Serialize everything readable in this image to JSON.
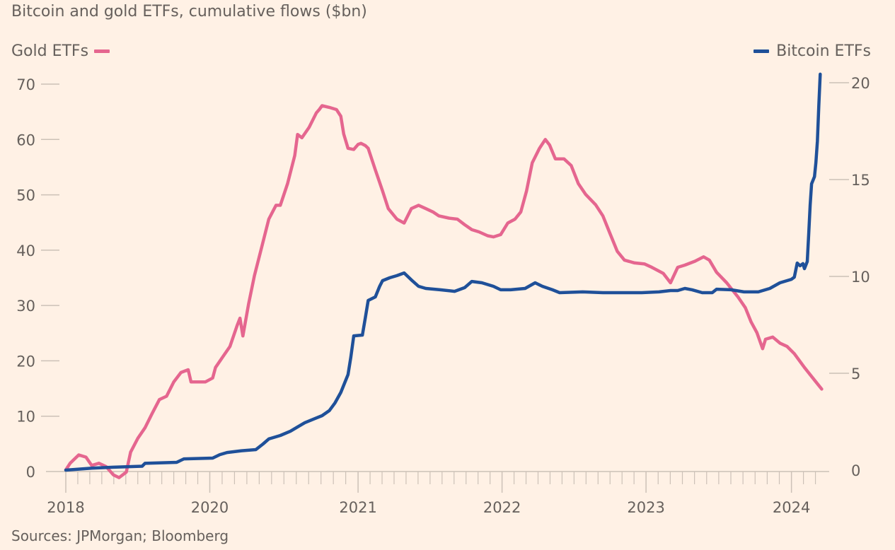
{
  "chart_data": {
    "type": "line",
    "title": "Bitcoin and gold ETFs, cumulative flows ($bn)",
    "source": "Sources: JPMorgan; Bloomberg",
    "x_ticks": [
      {
        "label": "2018",
        "pos": 0
      },
      {
        "label": "2020",
        "pos": 1
      },
      {
        "label": "2021",
        "pos": 2.03
      },
      {
        "label": "2022",
        "pos": 3.03
      },
      {
        "label": "2023",
        "pos": 4.03
      },
      {
        "label": "2024",
        "pos": 5.04
      }
    ],
    "x_minor_ticks_per_major": 5,
    "x_range": [
      0,
      5.25
    ],
    "y_left": {
      "label": "Gold ETFs",
      "ticks": [
        0,
        10,
        20,
        30,
        40,
        50,
        60,
        70
      ],
      "range": [
        0,
        70
      ]
    },
    "y_right": {
      "label": "Bitcoin ETFs",
      "ticks": [
        0,
        5,
        10,
        15,
        20
      ],
      "range": [
        0,
        20
      ]
    },
    "grid": false,
    "legend": {
      "left": "top-left",
      "right": "top-right"
    },
    "series": [
      {
        "name": "Gold ETFs",
        "axis": "left",
        "color": "#e5668f",
        "points": [
          [
            0,
            0.3
          ],
          [
            0.03,
            1.5
          ],
          [
            0.09,
            3.0
          ],
          [
            0.14,
            2.6
          ],
          [
            0.18,
            1.1
          ],
          [
            0.23,
            1.5
          ],
          [
            0.28,
            0.9
          ],
          [
            0.33,
            -0.6
          ],
          [
            0.37,
            -1.1
          ],
          [
            0.42,
            -0.1
          ],
          [
            0.45,
            3.5
          ],
          [
            0.5,
            6.0
          ],
          [
            0.55,
            7.9
          ],
          [
            0.6,
            10.5
          ],
          [
            0.65,
            13.0
          ],
          [
            0.7,
            13.6
          ],
          [
            0.75,
            16.2
          ],
          [
            0.8,
            17.9
          ],
          [
            0.85,
            18.4
          ],
          [
            0.87,
            16.2
          ],
          [
            0.92,
            16.2
          ],
          [
            0.97,
            16.2
          ],
          [
            1.02,
            16.9
          ],
          [
            1.04,
            18.8
          ],
          [
            1.09,
            20.7
          ],
          [
            1.14,
            22.6
          ],
          [
            1.19,
            26.4
          ],
          [
            1.21,
            27.7
          ],
          [
            1.23,
            24.5
          ],
          [
            1.27,
            30.3
          ],
          [
            1.31,
            35.4
          ],
          [
            1.36,
            40.5
          ],
          [
            1.41,
            45.6
          ],
          [
            1.46,
            48.1
          ],
          [
            1.49,
            48.1
          ],
          [
            1.54,
            52.0
          ],
          [
            1.59,
            57.1
          ],
          [
            1.61,
            60.9
          ],
          [
            1.64,
            60.3
          ],
          [
            1.69,
            62.2
          ],
          [
            1.74,
            64.8
          ],
          [
            1.76,
            65.4
          ],
          [
            1.78,
            66.1
          ],
          [
            1.83,
            65.8
          ],
          [
            1.88,
            65.4
          ],
          [
            1.91,
            64.2
          ],
          [
            1.93,
            61.0
          ],
          [
            1.96,
            58.4
          ],
          [
            2.0,
            58.2
          ],
          [
            2.03,
            59.1
          ],
          [
            2.05,
            59.3
          ],
          [
            2.08,
            58.9
          ],
          [
            2.1,
            58.4
          ],
          [
            2.15,
            54.5
          ],
          [
            2.2,
            50.7
          ],
          [
            2.24,
            47.5
          ],
          [
            2.3,
            45.6
          ],
          [
            2.35,
            44.9
          ],
          [
            2.4,
            47.5
          ],
          [
            2.45,
            48.1
          ],
          [
            2.5,
            47.5
          ],
          [
            2.55,
            46.9
          ],
          [
            2.59,
            46.2
          ],
          [
            2.66,
            45.8
          ],
          [
            2.72,
            45.6
          ],
          [
            2.77,
            44.6
          ],
          [
            2.82,
            43.7
          ],
          [
            2.87,
            43.3
          ],
          [
            2.93,
            42.6
          ],
          [
            2.97,
            42.4
          ],
          [
            3.02,
            42.8
          ],
          [
            3.07,
            44.9
          ],
          [
            3.12,
            45.6
          ],
          [
            3.16,
            46.9
          ],
          [
            3.2,
            50.7
          ],
          [
            3.24,
            55.8
          ],
          [
            3.29,
            58.4
          ],
          [
            3.33,
            60.0
          ],
          [
            3.36,
            59.0
          ],
          [
            3.4,
            56.5
          ],
          [
            3.46,
            56.5
          ],
          [
            3.51,
            55.3
          ],
          [
            3.56,
            52.0
          ],
          [
            3.61,
            50.1
          ],
          [
            3.68,
            48.2
          ],
          [
            3.73,
            46.2
          ],
          [
            3.78,
            43.0
          ],
          [
            3.83,
            39.8
          ],
          [
            3.88,
            38.2
          ],
          [
            3.95,
            37.7
          ],
          [
            4.02,
            37.5
          ],
          [
            4.07,
            36.9
          ],
          [
            4.15,
            35.8
          ],
          [
            4.2,
            34.1
          ],
          [
            4.25,
            36.9
          ],
          [
            4.3,
            37.3
          ],
          [
            4.37,
            38.0
          ],
          [
            4.43,
            38.8
          ],
          [
            4.47,
            38.2
          ],
          [
            4.52,
            36.0
          ],
          [
            4.59,
            34.1
          ],
          [
            4.67,
            31.5
          ],
          [
            4.72,
            29.6
          ],
          [
            4.76,
            27.0
          ],
          [
            4.8,
            25.1
          ],
          [
            4.84,
            22.2
          ],
          [
            4.86,
            23.9
          ],
          [
            4.91,
            24.3
          ],
          [
            4.96,
            23.2
          ],
          [
            5.01,
            22.6
          ],
          [
            5.06,
            21.3
          ],
          [
            5.13,
            18.8
          ],
          [
            5.21,
            16.2
          ],
          [
            5.25,
            14.9
          ]
        ]
      },
      {
        "name": "Bitcoin ETFs",
        "axis": "right",
        "color": "#1f5099",
        "points": [
          [
            0,
            0
          ],
          [
            0.18,
            0.1
          ],
          [
            0.33,
            0.15
          ],
          [
            0.53,
            0.2
          ],
          [
            0.55,
            0.35
          ],
          [
            0.77,
            0.4
          ],
          [
            0.82,
            0.58
          ],
          [
            1.02,
            0.62
          ],
          [
            1.07,
            0.8
          ],
          [
            1.12,
            0.91
          ],
          [
            1.22,
            1.0
          ],
          [
            1.32,
            1.06
          ],
          [
            1.37,
            1.35
          ],
          [
            1.41,
            1.61
          ],
          [
            1.49,
            1.79
          ],
          [
            1.56,
            2.01
          ],
          [
            1.61,
            2.23
          ],
          [
            1.66,
            2.45
          ],
          [
            1.73,
            2.66
          ],
          [
            1.78,
            2.81
          ],
          [
            1.83,
            3.07
          ],
          [
            1.87,
            3.47
          ],
          [
            1.91,
            4.01
          ],
          [
            1.96,
            4.93
          ],
          [
            1.98,
            5.84
          ],
          [
            2.0,
            6.93
          ],
          [
            2.06,
            6.97
          ],
          [
            2.08,
            7.85
          ],
          [
            2.1,
            8.76
          ],
          [
            2.15,
            8.94
          ],
          [
            2.18,
            9.49
          ],
          [
            2.2,
            9.78
          ],
          [
            2.25,
            9.93
          ],
          [
            2.3,
            10.04
          ],
          [
            2.35,
            10.18
          ],
          [
            2.4,
            9.82
          ],
          [
            2.45,
            9.49
          ],
          [
            2.5,
            9.38
          ],
          [
            2.6,
            9.31
          ],
          [
            2.7,
            9.23
          ],
          [
            2.77,
            9.42
          ],
          [
            2.82,
            9.74
          ],
          [
            2.89,
            9.67
          ],
          [
            2.97,
            9.49
          ],
          [
            3.02,
            9.31
          ],
          [
            3.09,
            9.31
          ],
          [
            3.19,
            9.38
          ],
          [
            3.26,
            9.67
          ],
          [
            3.31,
            9.49
          ],
          [
            3.38,
            9.31
          ],
          [
            3.43,
            9.16
          ],
          [
            3.59,
            9.2
          ],
          [
            3.73,
            9.16
          ],
          [
            3.88,
            9.16
          ],
          [
            4.0,
            9.16
          ],
          [
            4.12,
            9.2
          ],
          [
            4.2,
            9.27
          ],
          [
            4.25,
            9.27
          ],
          [
            4.3,
            9.38
          ],
          [
            4.35,
            9.31
          ],
          [
            4.42,
            9.16
          ],
          [
            4.49,
            9.16
          ],
          [
            4.52,
            9.34
          ],
          [
            4.62,
            9.31
          ],
          [
            4.71,
            9.2
          ],
          [
            4.81,
            9.2
          ],
          [
            4.89,
            9.38
          ],
          [
            4.96,
            9.67
          ],
          [
            5.04,
            9.85
          ],
          [
            5.06,
            9.96
          ],
          [
            5.08,
            10.69
          ],
          [
            5.1,
            10.55
          ],
          [
            5.12,
            10.66
          ],
          [
            5.13,
            10.4
          ],
          [
            5.15,
            10.77
          ],
          [
            5.16,
            12.23
          ],
          [
            5.17,
            13.69
          ],
          [
            5.18,
            14.78
          ],
          [
            5.2,
            15.15
          ],
          [
            5.21,
            15.88
          ],
          [
            5.22,
            16.97
          ],
          [
            5.23,
            18.8
          ],
          [
            5.24,
            20.44
          ]
        ]
      }
    ]
  }
}
